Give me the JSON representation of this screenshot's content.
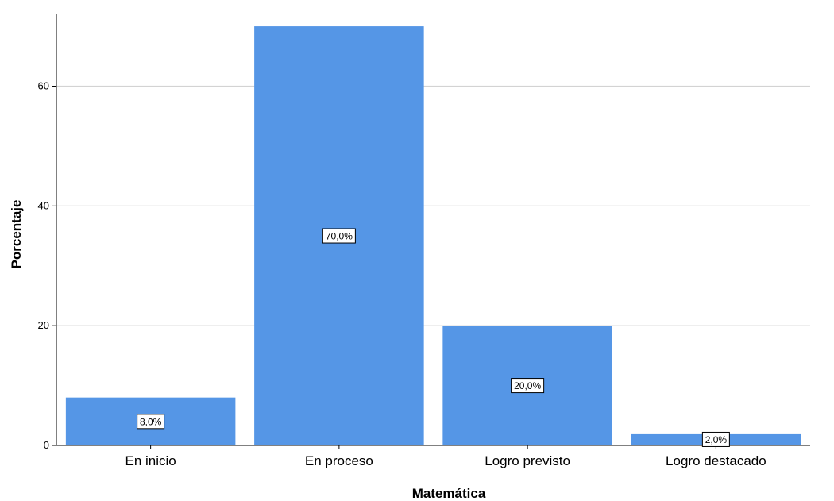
{
  "chart_data": {
    "type": "bar",
    "categories": [
      "En inicio",
      "En proceso",
      "Logro previsto",
      "Logro destacado"
    ],
    "values": [
      8.0,
      70.0,
      20.0,
      2.0
    ],
    "data_labels": [
      "8,0%",
      "70,0%",
      "20,0%",
      "2,0%"
    ],
    "xlabel": "Matemática",
    "ylabel": "Porcentaje",
    "ylim": [
      0,
      72
    ],
    "yticks": [
      0,
      20,
      40,
      60
    ],
    "grid": true,
    "bar_color": "#5596e6",
    "grid_color": "#d3d3d3"
  }
}
